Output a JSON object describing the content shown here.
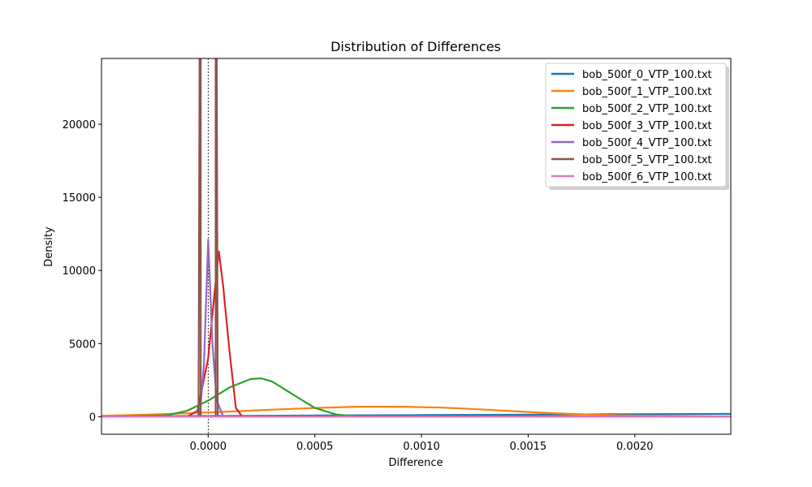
{
  "chart_data": {
    "type": "line",
    "title": "Distribution of Differences",
    "xlabel": "Difference",
    "ylabel": "Density",
    "xlim": [
      -0.0005,
      0.00245
    ],
    "ylim": [
      -1200,
      24500
    ],
    "xticks": [
      0.0,
      0.0005,
      0.001,
      0.0015,
      0.002
    ],
    "xtick_labels": [
      "0.0000",
      "0.0005",
      "0.0010",
      "0.0015",
      "0.0020"
    ],
    "yticks": [
      0,
      5000,
      10000,
      15000,
      20000
    ],
    "ytick_labels": [
      "0",
      "5000",
      "10000",
      "15000",
      "20000"
    ],
    "reference_lines": {
      "x": 0,
      "y": 0,
      "style": "dashed"
    },
    "legend_position": "top-right",
    "series": [
      {
        "name": "bob_500f_0_VTP_100.txt",
        "color": "#1f77b4",
        "x": [
          -0.0005,
          0.0,
          0.0005,
          0.001,
          0.0015,
          0.002,
          0.00245
        ],
        "y": [
          30,
          50,
          80,
          110,
          140,
          170,
          190
        ]
      },
      {
        "name": "bob_500f_1_VTP_100.txt",
        "color": "#ff7f0e",
        "x": [
          -0.0005,
          -0.0003,
          -0.0001,
          0.0001,
          0.0003,
          0.0005,
          0.0007,
          0.0009,
          0.0011,
          0.0013,
          0.0015,
          0.0017,
          0.0019,
          0.0021,
          0.00245
        ],
        "y": [
          60,
          130,
          230,
          350,
          480,
          600,
          680,
          690,
          620,
          480,
          320,
          190,
          100,
          50,
          10
        ]
      },
      {
        "name": "bob_500f_2_VTP_100.txt",
        "color": "#2ca02c",
        "x": [
          -0.0005,
          -0.0002,
          -0.0001,
          0.0,
          0.0001,
          0.0002,
          0.00025,
          0.0003,
          0.0004,
          0.0005,
          0.0006,
          0.0007,
          0.0008,
          0.00245
        ],
        "y": [
          0,
          80,
          400,
          1100,
          2000,
          2580,
          2620,
          2400,
          1500,
          600,
          150,
          20,
          0,
          0
        ]
      },
      {
        "name": "bob_500f_3_VTP_100.txt",
        "color": "#d62728",
        "x": [
          -0.0005,
          -0.0001,
          -5e-05,
          0.0,
          3e-05,
          5e-05,
          7e-05,
          0.0001,
          0.00013,
          0.00016,
          0.0002,
          0.00245
        ],
        "y": [
          0,
          0,
          400,
          4000,
          8500,
          11300,
          9000,
          4500,
          600,
          0,
          0,
          0
        ]
      },
      {
        "name": "bob_500f_4_VTP_100.txt",
        "color": "#9467bd",
        "x": [
          -0.0005,
          -4e-05,
          -2e-05,
          0.0,
          2e-05,
          4e-05,
          7e-05,
          0.0001,
          0.00245
        ],
        "y": [
          0,
          0,
          3500,
          12100,
          5000,
          1100,
          50,
          0,
          0
        ]
      },
      {
        "name": "bob_500f_5_VTP_100.txt",
        "color": "#8c564b",
        "x": [
          -0.0005,
          -4.5e-05,
          -4e-05,
          -3.5e-05,
          -3.5e-05,
          3.5e-05,
          3.5e-05,
          4e-05,
          4.5e-05,
          0.00245
        ],
        "y": [
          0,
          0,
          24500,
          24500,
          0,
          0,
          24500,
          24500,
          0,
          0
        ]
      },
      {
        "name": "bob_500f_6_VTP_100.txt",
        "color": "#e377c2",
        "x": [
          -0.0005,
          0.00245
        ],
        "y": [
          0,
          0
        ]
      }
    ]
  }
}
